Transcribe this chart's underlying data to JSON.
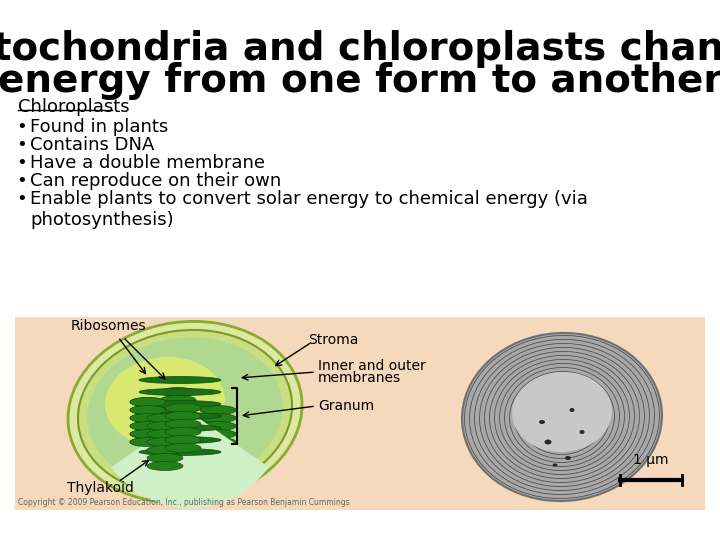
{
  "title_line1": "Mitochondria and chloroplasts change",
  "title_line2": "energy from one form to another",
  "title_fontsize": 28,
  "section_label": "Chloroplasts",
  "bullets": [
    "Found in plants",
    "Contains DNA",
    "Have a double membrane",
    "Can reproduce on their own",
    "Enable plants to convert solar energy to chemical energy (via\nphotosynthesis)"
  ],
  "bullet_fontsize": 13,
  "background_color": "#ffffff",
  "image_box_color": "#f5d9bc",
  "copyright_text": "Copyright © 2009 Pearson Education, Inc., publishing as Pearson Benjamin Cummings",
  "image_labels": [
    "Ribosomes",
    "Stroma",
    "Inner and outer\nmembranes",
    "Granum",
    "Thylakoid",
    "1 μm"
  ]
}
